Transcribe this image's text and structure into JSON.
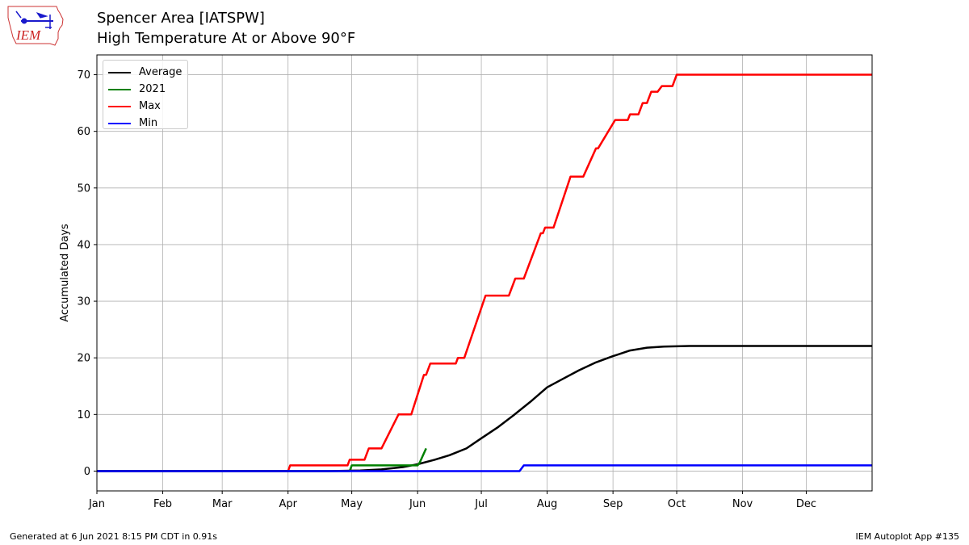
{
  "logo": {
    "text": "IEM",
    "colors": {
      "outline": "#cc3333",
      "text": "#cc2222",
      "icon": "#1a1acc"
    }
  },
  "header": {
    "title": "Spencer Area [IATSPW]",
    "subtitle": "High Temperature At or Above 90°F"
  },
  "footer": {
    "generated": "Generated at 6 Jun 2021 8:15 PM CDT in 0.91s",
    "app": "IEM Autoplot App #135"
  },
  "chart_data": {
    "type": "line",
    "xlabel": "",
    "ylabel": "Accumulated Days",
    "xlim": [
      1,
      366
    ],
    "ylim": [
      -3.5,
      73.5
    ],
    "xticks": [
      {
        "label": "Jan",
        "day": 1
      },
      {
        "label": "Feb",
        "day": 32
      },
      {
        "label": "Mar",
        "day": 60
      },
      {
        "label": "Apr",
        "day": 91
      },
      {
        "label": "May",
        "day": 121
      },
      {
        "label": "Jun",
        "day": 152
      },
      {
        "label": "Jul",
        "day": 182
      },
      {
        "label": "Aug",
        "day": 213
      },
      {
        "label": "Sep",
        "day": 244
      },
      {
        "label": "Oct",
        "day": 274
      },
      {
        "label": "Nov",
        "day": 305
      },
      {
        "label": "Dec",
        "day": 335
      }
    ],
    "yticks": [
      0,
      10,
      20,
      30,
      40,
      50,
      60,
      70
    ],
    "grid": true,
    "legend_position": "top-left",
    "series": [
      {
        "name": "Average",
        "color": "#000000",
        "points": [
          [
            1,
            0
          ],
          [
            110,
            0
          ],
          [
            125,
            0.1
          ],
          [
            135,
            0.3
          ],
          [
            145,
            0.7
          ],
          [
            152,
            1.2
          ],
          [
            160,
            2
          ],
          [
            167,
            2.8
          ],
          [
            175,
            4
          ],
          [
            182,
            5.8
          ],
          [
            190,
            7.8
          ],
          [
            197,
            9.8
          ],
          [
            205,
            12.2
          ],
          [
            213,
            14.8
          ],
          [
            220,
            16.2
          ],
          [
            228,
            17.8
          ],
          [
            236,
            19.2
          ],
          [
            244,
            20.3
          ],
          [
            252,
            21.3
          ],
          [
            260,
            21.8
          ],
          [
            268,
            22.0
          ],
          [
            280,
            22.1
          ],
          [
            300,
            22.1
          ],
          [
            366,
            22.1
          ]
        ]
      },
      {
        "name": "2021",
        "color": "#008000",
        "points": [
          [
            1,
            0
          ],
          [
            120,
            0
          ],
          [
            121,
            1
          ],
          [
            152,
            1
          ],
          [
            153,
            1.5
          ],
          [
            156,
            4
          ]
        ]
      },
      {
        "name": "Max",
        "color": "#ff0000",
        "points": [
          [
            1,
            0
          ],
          [
            91,
            0
          ],
          [
            92,
            1
          ],
          [
            119,
            1
          ],
          [
            120,
            2
          ],
          [
            127,
            2
          ],
          [
            129,
            4
          ],
          [
            135,
            4
          ],
          [
            143,
            10
          ],
          [
            149,
            10
          ],
          [
            155,
            17
          ],
          [
            156,
            17
          ],
          [
            158,
            19
          ],
          [
            170,
            19
          ],
          [
            171,
            20
          ],
          [
            174,
            20
          ],
          [
            184,
            31
          ],
          [
            195,
            31
          ],
          [
            198,
            34
          ],
          [
            202,
            34
          ],
          [
            210,
            42
          ],
          [
            211,
            42
          ],
          [
            212,
            43
          ],
          [
            216,
            43
          ],
          [
            224,
            52
          ],
          [
            230,
            52
          ],
          [
            236,
            57
          ],
          [
            237,
            57
          ],
          [
            245,
            62
          ],
          [
            251,
            62
          ],
          [
            252,
            63
          ],
          [
            256,
            63
          ],
          [
            258,
            65
          ],
          [
            260,
            65
          ],
          [
            262,
            67
          ],
          [
            265,
            67
          ],
          [
            267,
            68
          ],
          [
            272,
            68
          ],
          [
            274,
            70
          ],
          [
            366,
            70
          ]
        ]
      },
      {
        "name": "Min",
        "color": "#0000ff",
        "points": [
          [
            1,
            0
          ],
          [
            200,
            0
          ],
          [
            202,
            1
          ],
          [
            366,
            1
          ]
        ]
      }
    ]
  }
}
